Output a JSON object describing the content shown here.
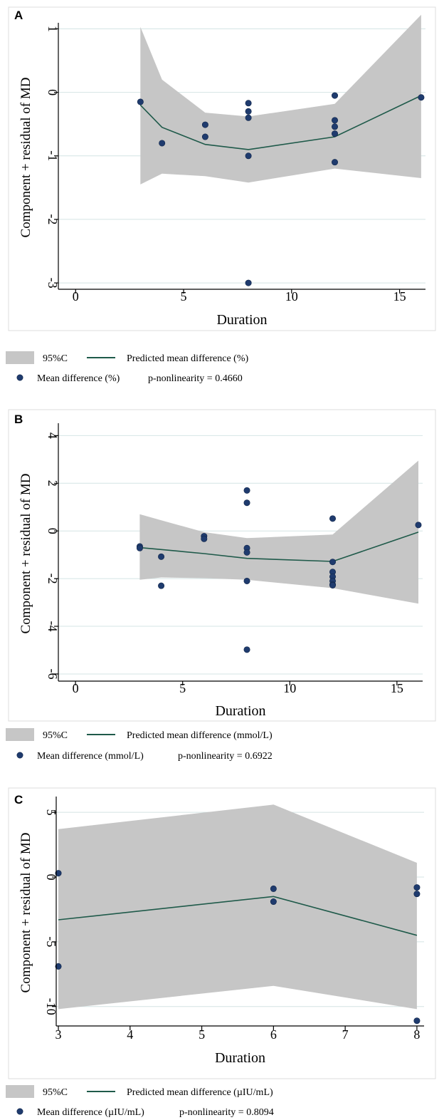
{
  "chart_data": [
    {
      "type": "line",
      "panel": "A",
      "xlabel": "Duration",
      "ylabel": "Component + residual of MD",
      "xlim": [
        -0.8,
        16.2
      ],
      "ylim": [
        -3.1,
        1.05
      ],
      "xticks": [
        0,
        5,
        10,
        15
      ],
      "yticks": [
        1,
        0,
        -1,
        -2,
        -3
      ],
      "ci_upper": {
        "x": [
          3,
          4,
          6,
          8,
          12,
          16
        ],
        "y": [
          1.03,
          0.2,
          -0.32,
          -0.38,
          -0.18,
          1.22
        ]
      },
      "ci_lower": {
        "x": [
          3,
          4,
          6,
          8,
          12,
          16
        ],
        "y": [
          -1.45,
          -1.28,
          -1.32,
          -1.42,
          -1.2,
          -1.35
        ]
      },
      "fit": {
        "x": [
          3,
          4,
          6,
          8,
          12,
          16
        ],
        "y": [
          -0.2,
          -0.55,
          -0.82,
          -0.9,
          -0.7,
          -0.05
        ]
      },
      "points": {
        "x": [
          3,
          4,
          6,
          6,
          8,
          8,
          8,
          8,
          8,
          12,
          12,
          12,
          12,
          12,
          16
        ],
        "y": [
          -0.15,
          -0.8,
          -0.51,
          -0.7,
          -0.17,
          -0.3,
          -0.4,
          -1.0,
          -3.0,
          -0.44,
          -0.54,
          -0.65,
          -1.1,
          -0.05,
          -0.08
        ]
      },
      "legend": {
        "ci": "95%C",
        "fit": "Predicted mean difference (%)",
        "points": "Mean difference (%)",
        "pvalue": "p-nonlinearity = 0.4660"
      }
    },
    {
      "type": "line",
      "panel": "B",
      "xlabel": "Duration",
      "ylabel": "Component + residual of MD",
      "xlim": [
        -0.8,
        16.2
      ],
      "ylim": [
        -6.3,
        4.4
      ],
      "xticks": [
        0,
        5,
        10,
        15
      ],
      "yticks": [
        4,
        2,
        0,
        -2,
        -4,
        -6
      ],
      "ci_upper": {
        "x": [
          3,
          4,
          6,
          8,
          12,
          16
        ],
        "y": [
          0.7,
          0.45,
          -0.05,
          -0.3,
          -0.15,
          2.95
        ]
      },
      "ci_lower": {
        "x": [
          3,
          4,
          6,
          8,
          12,
          16
        ],
        "y": [
          -2.05,
          -1.95,
          -1.98,
          -2.05,
          -2.4,
          -3.05
        ]
      },
      "fit": {
        "x": [
          3,
          4,
          6,
          8,
          12,
          16
        ],
        "y": [
          -0.7,
          -0.78,
          -0.95,
          -1.15,
          -1.28,
          -0.05
        ]
      },
      "points": {
        "x": [
          3,
          3,
          4,
          4,
          6,
          6,
          8,
          8,
          8,
          8,
          8,
          8,
          12,
          12,
          12,
          12,
          12,
          12,
          12,
          16
        ],
        "y": [
          -0.65,
          -0.72,
          -1.08,
          -2.3,
          -0.22,
          -0.33,
          1.7,
          1.18,
          -0.72,
          -0.9,
          -2.1,
          -4.98,
          0.52,
          -1.3,
          -1.72,
          -1.92,
          -2.1,
          -2.25,
          -2.28,
          0.25
        ]
      },
      "legend": {
        "ci": "95%C",
        "fit": "Predicted mean difference (mmol/L)",
        "points": "Mean difference (mmol/L)",
        "pvalue": "p-nonlinearity = 0.6922"
      }
    },
    {
      "type": "line",
      "panel": "C",
      "xlabel": "Duration",
      "ylabel": "Component + residual of MD",
      "xlim": [
        2.97,
        8.1
      ],
      "ylim": [
        -11.5,
        6.0
      ],
      "xticks": [
        3,
        4,
        5,
        6,
        7,
        8
      ],
      "yticks": [
        5,
        0,
        -5,
        -10
      ],
      "ci_upper": {
        "x": [
          3,
          6,
          8
        ],
        "y": [
          3.7,
          5.6,
          1.1
        ]
      },
      "ci_lower": {
        "x": [
          3,
          6,
          8
        ],
        "y": [
          -10.2,
          -8.4,
          -10.2
        ]
      },
      "fit": {
        "x": [
          3,
          6,
          8
        ],
        "y": [
          -3.3,
          -1.5,
          -4.5
        ]
      },
      "points": {
        "x": [
          3,
          3,
          6,
          6,
          8,
          8,
          8
        ],
        "y": [
          0.3,
          -6.9,
          -0.9,
          -1.9,
          -0.8,
          -1.3,
          -11.1
        ]
      },
      "legend": {
        "ci": "95%C",
        "fit": "Predicted mean difference (µIU/mL)",
        "points": "Mean difference (µIU/mL)",
        "pvalue": "p-nonlinearity = 0.8094"
      }
    }
  ],
  "colors": {
    "ci_band": "#c6c6c6",
    "fit_line": "#1f5a4a",
    "points": "#1f3b6e",
    "grid": "#d4e4e4"
  }
}
